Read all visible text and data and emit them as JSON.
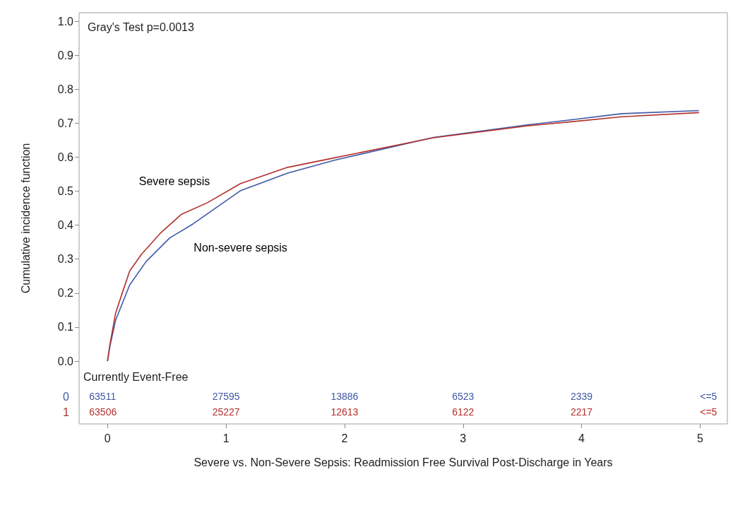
{
  "chart_data": {
    "type": "line",
    "xlabel": "Severe vs. Non-Severe Sepsis: Readmission Free Survival Post-Discharge in Years",
    "ylabel": "Cumulative incidence function",
    "xlim": [
      -0.24,
      5.23
    ],
    "ylim": [
      -0.185,
      1.025
    ],
    "xticks": [
      0,
      1,
      2,
      3,
      4,
      5
    ],
    "yticks": [
      {
        "value": 0,
        "label": "0.0"
      },
      0.1,
      0.2,
      0.3,
      0.4,
      0.5,
      0.6,
      0.7,
      0.8,
      0.9,
      {
        "value": 1,
        "label": "1.0"
      }
    ],
    "grid": false,
    "legend": false,
    "marker": "none",
    "line_style": "solid",
    "series": [
      {
        "name": "Non-severe sepsis",
        "color": "#3f58a6",
        "x": [
          0,
          0.018,
          0.068,
          0.187,
          0.326,
          0.524,
          0.723,
          1.12,
          1.52,
          1.915,
          2.75,
          3.54,
          3.94,
          4.34,
          4.99
        ],
        "values": [
          0,
          0.04,
          0.12,
          0.224,
          0.293,
          0.362,
          0.404,
          0.501,
          0.553,
          0.591,
          0.658,
          0.695,
          0.711,
          0.728,
          0.737
        ]
      },
      {
        "name": "Severe sepsis",
        "color": "#b2302c",
        "x": [
          0,
          0.018,
          0.068,
          0.127,
          0.187,
          0.286,
          0.445,
          0.624,
          0.843,
          1.12,
          1.52,
          1.915,
          2.75,
          3.54,
          3.94,
          4.34,
          4.99
        ],
        "values": [
          0,
          0.044,
          0.141,
          0.203,
          0.265,
          0.314,
          0.376,
          0.432,
          0.466,
          0.522,
          0.57,
          0.598,
          0.657,
          0.692,
          0.705,
          0.719,
          0.731
        ]
      }
    ],
    "annotations": [
      "Gray's Test p=0.0013",
      "Currently Event-Free",
      "0",
      "63511",
      "27595",
      "13886",
      "6523",
      "2339",
      "<=5",
      "1",
      "63506",
      "25227",
      "12613",
      "6122",
      "2217",
      "<=5"
    ]
  }
}
